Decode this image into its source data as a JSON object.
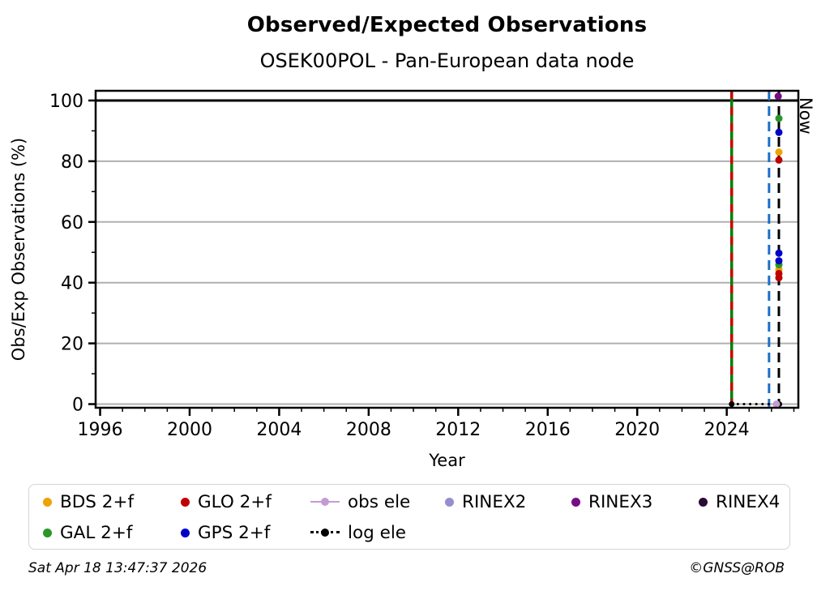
{
  "title": "Observed/Expected Observations",
  "subtitle": "OSEK00POL - Pan-European data node",
  "footer": {
    "timestamp": "Sat Apr 18 13:47:37 2026",
    "credit": "©GNSS@ROB"
  },
  "chart_data": {
    "type": "scatter",
    "title": "Observed/Expected Observations",
    "subtitle": "OSEK00POL - Pan-European data node",
    "xlabel": "Year",
    "ylabel": "Obs/Exp Observations (%)",
    "xlim": [
      1995.8,
      2027.2
    ],
    "ylim": [
      -1.2,
      103.2
    ],
    "x_ticks": [
      1996,
      2000,
      2004,
      2008,
      2012,
      2016,
      2020,
      2024
    ],
    "x_minor_step": 1,
    "y_ticks": [
      0,
      20,
      40,
      60,
      80,
      100
    ],
    "y_minor_ticks": [
      10,
      30,
      50,
      70,
      90
    ],
    "grid": {
      "horizontal": true,
      "vertical": false,
      "color": "#b0b0b0",
      "legend_position": "bottom"
    },
    "reference_hline": {
      "y": 100,
      "color": "#000000"
    },
    "series": [
      {
        "name": "BDS 2+f",
        "color": "#f0a202",
        "marker": "circle",
        "points": [
          [
            2026.33,
            83.0
          ],
          [
            2026.33,
            44.3
          ]
        ]
      },
      {
        "name": "GLO 2+f",
        "color": "#c00000",
        "marker": "circle",
        "points": [
          [
            2026.33,
            80.4
          ],
          [
            2026.33,
            43.0
          ],
          [
            2026.33,
            41.6
          ]
        ]
      },
      {
        "name": "GAL 2+f",
        "color": "#2a9628",
        "marker": "circle",
        "points": [
          [
            2026.33,
            94.1
          ],
          [
            2026.33,
            45.9
          ]
        ]
      },
      {
        "name": "GPS 2+f",
        "color": "#0000c8",
        "marker": "circle",
        "points": [
          [
            2026.33,
            89.5
          ],
          [
            2026.33,
            49.7
          ],
          [
            2026.33,
            47.2
          ]
        ]
      },
      {
        "name": "RINEX2",
        "color": "#958fce",
        "marker": "circle",
        "points": []
      },
      {
        "name": "RINEX3",
        "color": "#760d87",
        "marker": "circle",
        "points": [
          [
            2026.3,
            101.4
          ]
        ]
      },
      {
        "name": "RINEX4",
        "color": "#2b0b36",
        "marker": "circle",
        "points": []
      },
      {
        "name": "obs ele",
        "color": "#c49bd4",
        "marker": "line-circle",
        "points": [
          [
            2026.22,
            0
          ]
        ]
      },
      {
        "name": "log ele",
        "color": "#000000",
        "marker": "dotted-line",
        "line": {
          "x1": 2024.22,
          "x2": 2026.35,
          "y": 0
        }
      }
    ],
    "vlines": [
      {
        "x": 2024.22,
        "style": "green-red-dashed",
        "colors": [
          "#008000",
          "#cc0000"
        ],
        "label": ""
      },
      {
        "x": 2025.89,
        "style": "dashed",
        "color": "#1a6fc9",
        "label": ""
      },
      {
        "x": 2026.33,
        "style": "dashed",
        "color": "#000000",
        "label": "Now"
      }
    ]
  },
  "legend": {
    "items": [
      {
        "label": "BDS 2+f",
        "color": "#f0a202",
        "marker": "dot"
      },
      {
        "label": "GLO 2+f",
        "color": "#c00000",
        "marker": "dot"
      },
      {
        "label": "obs ele",
        "color": "#c49bd4",
        "marker": "line-dot"
      },
      {
        "label": "RINEX2",
        "color": "#958fce",
        "marker": "dot"
      },
      {
        "label": "RINEX3",
        "color": "#760d87",
        "marker": "dot"
      },
      {
        "label": "RINEX4",
        "color": "#2b0b36",
        "marker": "dot"
      },
      {
        "label": "GAL 2+f",
        "color": "#2a9628",
        "marker": "dot"
      },
      {
        "label": "GPS 2+f",
        "color": "#0000c8",
        "marker": "dot"
      },
      {
        "label": "log ele",
        "color": "#000000",
        "marker": "dotted-line-dot"
      }
    ]
  }
}
